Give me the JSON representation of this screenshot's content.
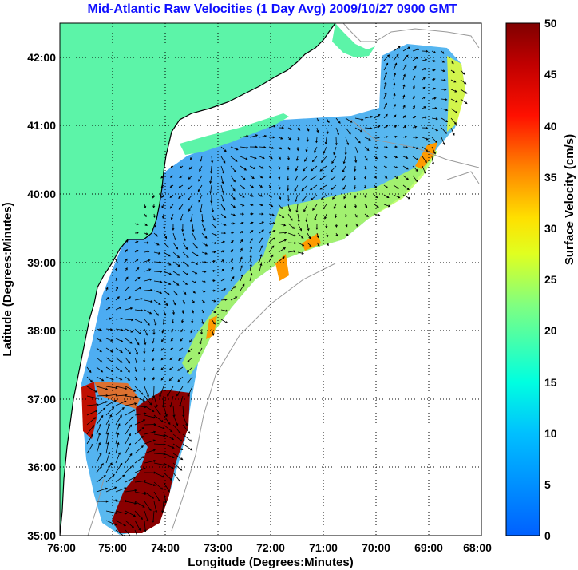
{
  "title": "Mid-Atlantic Raw Velocities (1 Day Avg) 2009/10/27 0900 GMT",
  "map": {
    "xlabel": "Longitude (Degrees:Minutes)",
    "ylabel": "Latitude (Degrees:Minutes)",
    "x_ticks": [
      "76:00",
      "75:00",
      "74:00",
      "73:00",
      "72:00",
      "71:00",
      "70:00",
      "69:00",
      "68:00"
    ],
    "y_ticks": [
      "42:00",
      "41:00",
      "40:00",
      "39:00",
      "38:00",
      "37:00",
      "36:00",
      "35:00"
    ],
    "lon_range": [
      -76,
      -68
    ],
    "lat_range": [
      35,
      42.5
    ],
    "land_color": "#5cf4a8",
    "grid": true
  },
  "colorbar": {
    "label": "Surface Velocity (cm/s)",
    "ticks": [
      "50",
      "45",
      "40",
      "35",
      "30",
      "25",
      "20",
      "15",
      "10",
      "5",
      "0"
    ],
    "range": [
      0,
      50
    ],
    "colormap": "jet"
  }
}
